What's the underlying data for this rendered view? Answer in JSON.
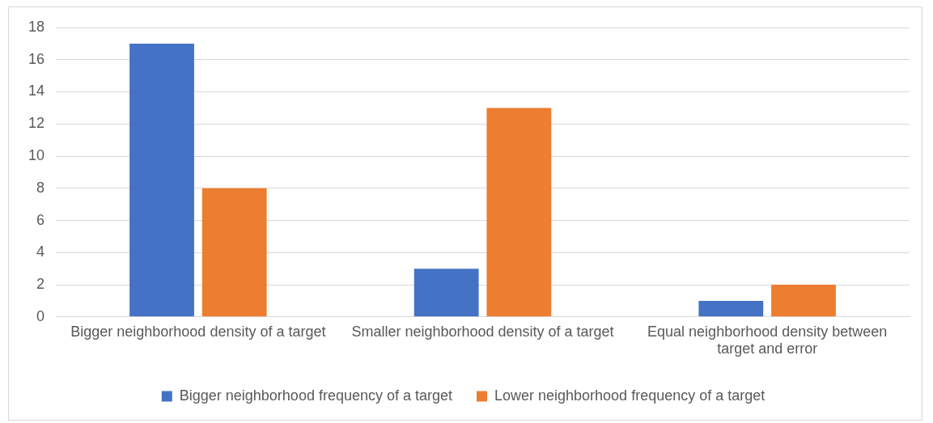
{
  "chart_data": {
    "type": "bar",
    "categories": [
      "Bigger neighborhood density of a target",
      "Smaller neighborhood density of a target",
      "Equal neighborhood density between target and error"
    ],
    "series": [
      {
        "name": "Bigger neighborhood frequency of a target",
        "color": "#4472c4",
        "values": [
          17,
          3,
          1
        ]
      },
      {
        "name": "Lower neighborhood frequency of a target",
        "color": "#ed7d31",
        "values": [
          8,
          13,
          2
        ]
      }
    ],
    "ylim": [
      0,
      18
    ],
    "yticks": [
      0,
      2,
      4,
      6,
      8,
      10,
      12,
      14,
      16,
      18
    ],
    "grid": "y",
    "legend": "bottom"
  }
}
